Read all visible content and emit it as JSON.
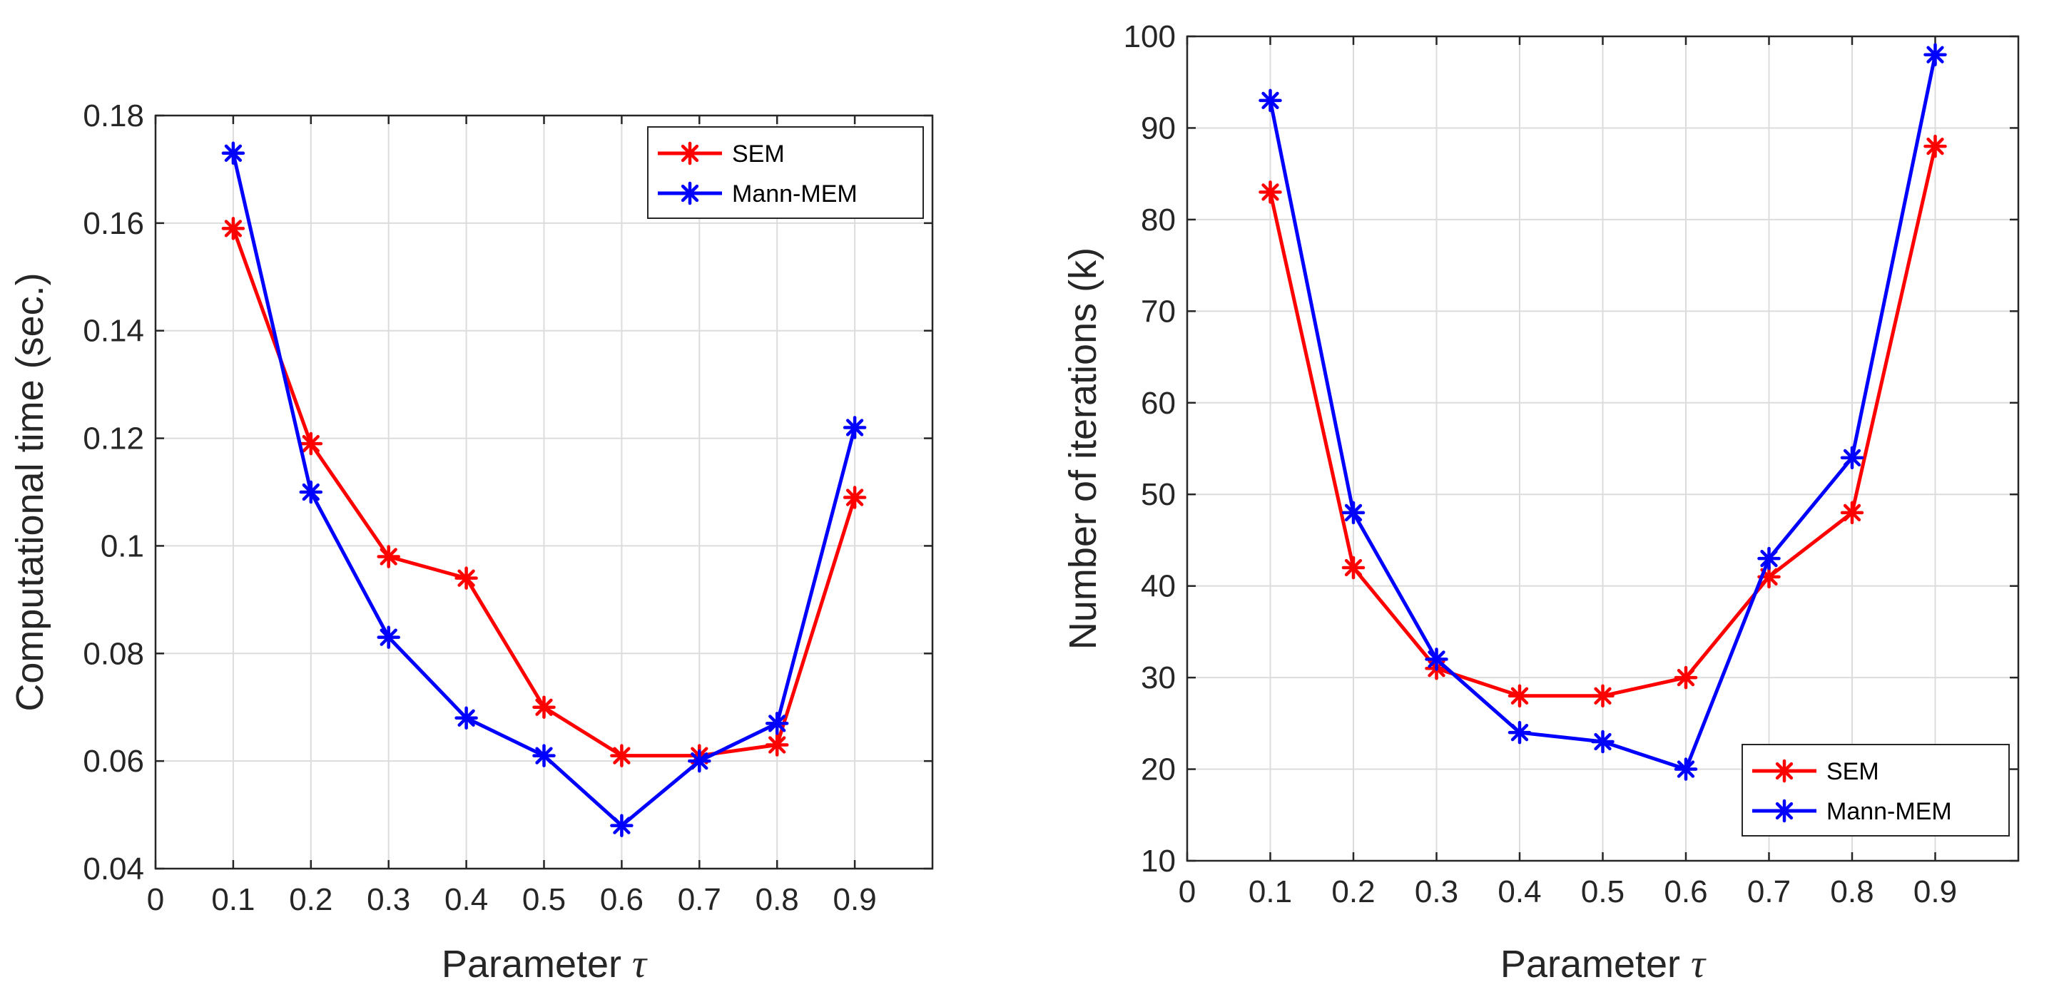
{
  "chart_data": [
    {
      "type": "line",
      "x": [
        0.1,
        0.2,
        0.3,
        0.4,
        0.5,
        0.6,
        0.7,
        0.8,
        0.9
      ],
      "series": [
        {
          "name": "SEM",
          "color": "#ff0000",
          "values": [
            0.159,
            0.119,
            0.098,
            0.094,
            0.07,
            0.061,
            0.061,
            0.063,
            0.109
          ]
        },
        {
          "name": "Mann-MEM",
          "color": "#0000ff",
          "values": [
            0.173,
            0.11,
            0.083,
            0.068,
            0.061,
            0.048,
            0.06,
            0.067,
            0.122
          ]
        }
      ],
      "xlim": [
        0,
        1
      ],
      "ylim": [
        0.04,
        0.18
      ],
      "xticks": [
        0,
        0.1,
        0.2,
        0.3,
        0.4,
        0.5,
        0.6,
        0.7,
        0.8,
        0.9
      ],
      "xtick_labels": [
        "0",
        "0.1",
        "0.2",
        "0.3",
        "0.4",
        "0.5",
        "0.6",
        "0.7",
        "0.8",
        "0.9"
      ],
      "yticks": [
        0.04,
        0.06,
        0.08,
        0.1,
        0.12,
        0.14,
        0.16,
        0.18
      ],
      "ytick_labels": [
        "0.04",
        "0.06",
        "0.08",
        "0.1",
        "0.12",
        "0.14",
        "0.16",
        "0.18"
      ],
      "xlabel": "Parameter ",
      "xlabel_symbol": "τ",
      "ylabel": "Computational time (sec.)",
      "grid": true,
      "legend": "top-right"
    },
    {
      "type": "line",
      "x": [
        0.1,
        0.2,
        0.3,
        0.4,
        0.5,
        0.6,
        0.7,
        0.8,
        0.9
      ],
      "series": [
        {
          "name": "SEM",
          "color": "#ff0000",
          "values": [
            83,
            42,
            31,
            28,
            28,
            30,
            41,
            48,
            88
          ]
        },
        {
          "name": "Mann-MEM",
          "color": "#0000ff",
          "values": [
            93,
            48,
            32,
            24,
            23,
            20,
            43,
            54,
            98
          ]
        }
      ],
      "xlim": [
        0,
        1
      ],
      "ylim": [
        10,
        100
      ],
      "xticks": [
        0,
        0.1,
        0.2,
        0.3,
        0.4,
        0.5,
        0.6,
        0.7,
        0.8,
        0.9
      ],
      "xtick_labels": [
        "0",
        "0.1",
        "0.2",
        "0.3",
        "0.4",
        "0.5",
        "0.6",
        "0.7",
        "0.8",
        "0.9"
      ],
      "yticks": [
        10,
        20,
        30,
        40,
        50,
        60,
        70,
        80,
        90,
        100
      ],
      "ytick_labels": [
        "10",
        "20",
        "30",
        "40",
        "50",
        "60",
        "70",
        "80",
        "90",
        "100"
      ],
      "xlabel": "Parameter ",
      "xlabel_symbol": "τ",
      "ylabel": "Number of iterations (k)",
      "grid": true,
      "legend": "bottom-right"
    }
  ]
}
